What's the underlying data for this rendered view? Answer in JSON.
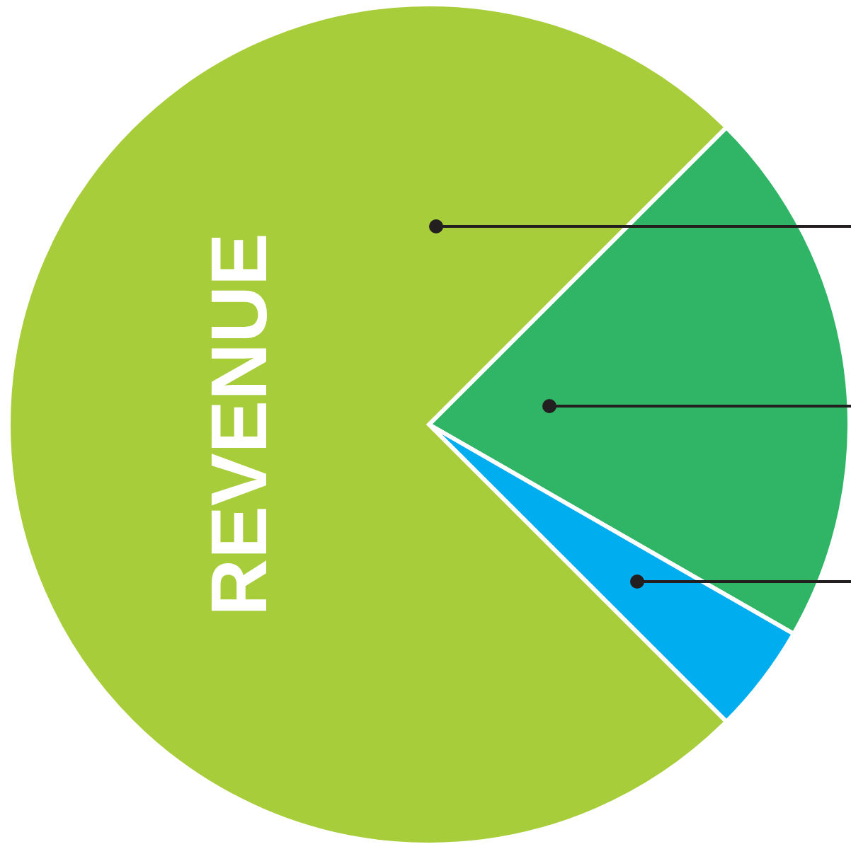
{
  "chart_data": {
    "type": "pie",
    "title": "REVENUE",
    "categories": [
      null,
      null,
      null
    ],
    "values": [
      20.8,
      4.2,
      75
    ],
    "colors": [
      "#30b566",
      "#00aeef",
      "#a8cd3a"
    ]
  }
}
